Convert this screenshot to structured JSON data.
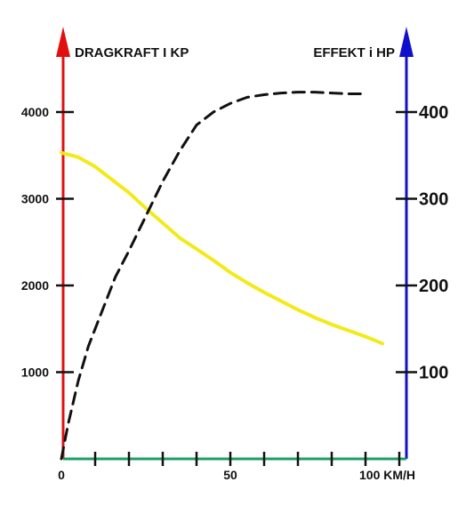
{
  "chart_data": {
    "type": "line",
    "left_axis_label": "DRAGKRAFT I KP",
    "right_axis_label": "EFFEKT i HP",
    "x_tick_labels": [
      "0",
      "50",
      "100 KM/H"
    ],
    "x_ticks": [
      0,
      10,
      20,
      30,
      40,
      50,
      60,
      70,
      80,
      90,
      100
    ],
    "left_ticks": [
      1000,
      2000,
      3000,
      4000
    ],
    "right_ticks": [
      100,
      200,
      300,
      400
    ],
    "xlim": [
      0,
      100
    ],
    "left_ylim": [
      0,
      4000
    ],
    "right_ylim": [
      0,
      400
    ],
    "series": [
      {
        "axis": "left",
        "color": "#f2ea1a",
        "style": "solid",
        "x": [
          0,
          5,
          10,
          15,
          20,
          25,
          30,
          35,
          40,
          45,
          50,
          55,
          60,
          65,
          70,
          75,
          80,
          85,
          90,
          95
        ],
        "y": [
          3530,
          3480,
          3370,
          3220,
          3070,
          2890,
          2720,
          2550,
          2420,
          2290,
          2150,
          2030,
          1920,
          1820,
          1720,
          1630,
          1550,
          1480,
          1410,
          1330
        ]
      },
      {
        "axis": "right",
        "color": "#111111",
        "style": "dashed",
        "x": [
          0,
          2,
          5,
          8,
          12,
          16,
          20,
          25,
          30,
          35,
          40,
          45,
          50,
          55,
          60,
          65,
          70,
          75,
          80,
          85,
          90
        ],
        "y": [
          0,
          40,
          90,
          130,
          170,
          210,
          240,
          280,
          320,
          355,
          385,
          400,
          410,
          417,
          420,
          422,
          423,
          423,
          422,
          421,
          421
        ]
      }
    ],
    "axis_colors": {
      "left": "#e01010",
      "right": "#1010cc",
      "bottom": "#15a064"
    }
  }
}
